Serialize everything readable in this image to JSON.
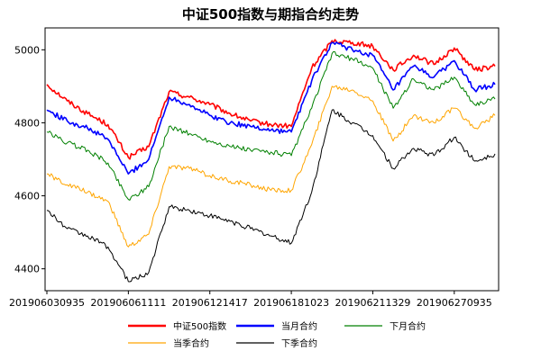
{
  "chart_data": {
    "type": "line",
    "title": "中证500指数与期指合约走势",
    "xlabel": "",
    "ylabel": "",
    "ylim": [
      4340,
      5060
    ],
    "grid": false,
    "legend_position": "bottom",
    "x_ticks": [
      "201906030935",
      "201906061111",
      "201906121417",
      "201906181023",
      "201906211329",
      "201906270935"
    ],
    "y_ticks": [
      4400,
      4600,
      4800,
      5000
    ],
    "x": [
      "201906030935",
      "201906040935",
      "201906050935",
      "201906060935",
      "201906061111",
      "201906070935",
      "201906100935",
      "201906110935",
      "201906121417",
      "201906130935",
      "201906140935",
      "201906170935",
      "201906181023",
      "201906190935",
      "201906200935",
      "201906210935",
      "201906211329",
      "201906240935",
      "201906250935",
      "201906260935",
      "201906270935",
      "201906280935",
      "201906281500"
    ],
    "series": [
      {
        "name": "中证500指数",
        "color": "#ff0000",
        "values": [
          4905,
          4860,
          4825,
          4795,
          4705,
          4735,
          4885,
          4870,
          4850,
          4825,
          4805,
          4795,
          4790,
          4950,
          5025,
          5020,
          5010,
          4945,
          4985,
          4960,
          5005,
          4945,
          4955
        ]
      },
      {
        "name": "当月合约",
        "color": "#0000ff",
        "values": [
          4835,
          4805,
          4785,
          4755,
          4660,
          4700,
          4870,
          4850,
          4820,
          4800,
          4790,
          4780,
          4775,
          4915,
          5020,
          5000,
          4985,
          4890,
          4955,
          4925,
          4970,
          4890,
          4905
        ]
      },
      {
        "name": "下月合约",
        "color": "#008000",
        "values": [
          4775,
          4745,
          4725,
          4690,
          4590,
          4625,
          4790,
          4770,
          4750,
          4735,
          4725,
          4720,
          4710,
          4840,
          4990,
          4975,
          4950,
          4840,
          4920,
          4890,
          4925,
          4850,
          4865
        ]
      },
      {
        "name": "当季合约",
        "color": "#ffa500",
        "values": [
          4660,
          4630,
          4610,
          4585,
          4460,
          4495,
          4680,
          4675,
          4655,
          4640,
          4630,
          4615,
          4615,
          4740,
          4900,
          4890,
          4860,
          4750,
          4820,
          4800,
          4840,
          4785,
          4820
        ]
      },
      {
        "name": "下季合约",
        "color": "#000000",
        "values": [
          4560,
          4510,
          4490,
          4460,
          4365,
          4390,
          4570,
          4560,
          4545,
          4530,
          4510,
          4490,
          4470,
          4610,
          4835,
          4800,
          4765,
          4675,
          4730,
          4710,
          4760,
          4695,
          4715
        ]
      }
    ]
  }
}
